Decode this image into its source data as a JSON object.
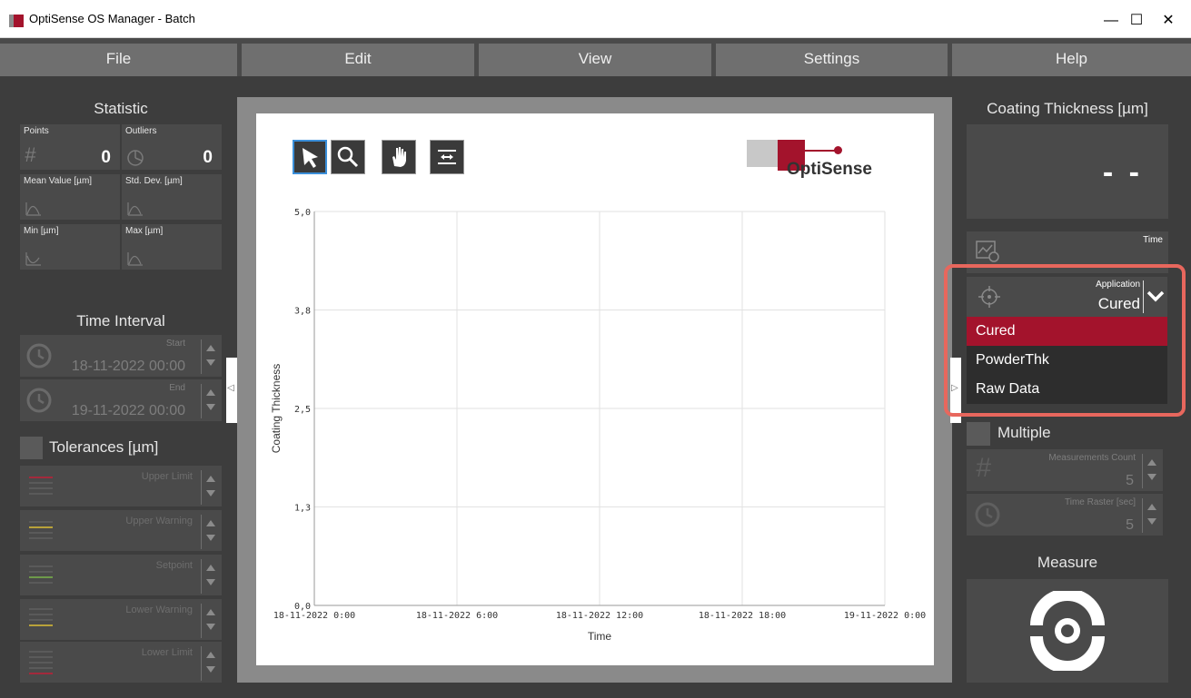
{
  "window": {
    "title": "OptiSense OS Manager - Batch",
    "minimize": "—",
    "maximize": "☐",
    "close": "✕"
  },
  "menu": [
    "File",
    "Edit",
    "View",
    "Settings",
    "Help"
  ],
  "statistic": {
    "title": "Statistic",
    "points_label": "Points",
    "points_value": "0",
    "points_icon": "#",
    "outliers_label": "Outliers",
    "outliers_value": "0",
    "mean_label": "Mean Value [µm]",
    "std_label": "Std. Dev. [µm]",
    "min_label": "Min [µm]",
    "max_label": "Max [µm]"
  },
  "time_interval": {
    "title": "Time Interval",
    "start_label": "Start",
    "start_value": "18-11-2022 00:00",
    "end_label": "End",
    "end_value": "19-11-2022 00:00"
  },
  "tolerances": {
    "title": "Tolerances [µm]",
    "items": [
      {
        "label": "Upper Limit",
        "color": "#a3293c"
      },
      {
        "label": "Upper Warning",
        "color": "#b8a23a"
      },
      {
        "label": "Setpoint",
        "color": "#6e9a4a"
      },
      {
        "label": "Lower Warning",
        "color": "#b8a23a"
      },
      {
        "label": "Lower Limit",
        "color": "#a3293c"
      }
    ]
  },
  "chart": {
    "logo": "OptiSense"
  },
  "chart_data": {
    "type": "line",
    "title": "",
    "xlabel": "Time",
    "ylabel": "Coating Thickness",
    "y_ticks": [
      "5,0",
      "3,8",
      "2,5",
      "1,3",
      "0,0"
    ],
    "x_ticks": [
      "18-11-2022 0:00",
      "18-11-2022 6:00",
      "18-11-2022 12:00",
      "18-11-2022 18:00",
      "19-11-2022 0:00"
    ],
    "ylim": [
      0,
      5
    ],
    "xlim": [
      "18-11-2022 0:00",
      "19-11-2022 0:00"
    ],
    "grid": true,
    "series": []
  },
  "right": {
    "coating_title": "Coating Thickness [µm]",
    "coating_value": "- -",
    "time_label": "Time",
    "application_label": "Application",
    "application_value": "Cured",
    "options": [
      "Cured",
      "PowderThk",
      "Raw Data"
    ],
    "selected_option": "Cured",
    "multiple_label": "Multiple",
    "measurements_count_label": "Measurements Count",
    "measurements_count_value": "5",
    "time_raster_label": "Time Raster [sec]",
    "time_raster_value": "5",
    "measure_title": "Measure"
  },
  "colors": {
    "accent": "#a3132c",
    "background": "#3d3d3d",
    "highlight": "#e8675d"
  }
}
